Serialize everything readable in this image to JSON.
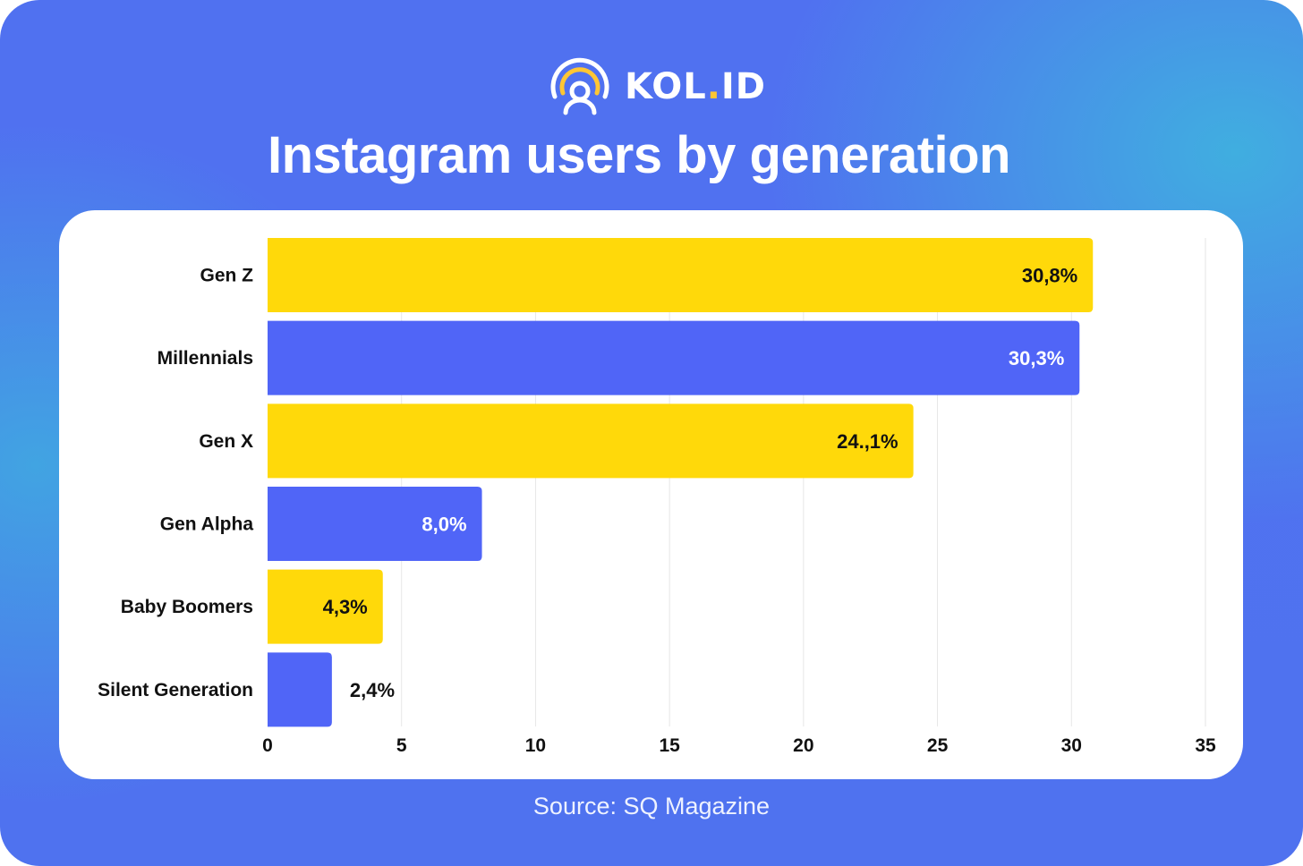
{
  "brand": {
    "name_main": "KOL",
    "name_dot": ".",
    "name_end": "ID",
    "logo_icon": "broadcast-person-icon",
    "accent": "#ffc634"
  },
  "title": "Instagram users by generation",
  "source": "Source: SQ Magazine",
  "colors": {
    "yellow": "#ffd90a",
    "blue": "#5065f7",
    "grid": "#e6e6e6",
    "text": "#111111"
  },
  "chart_data": {
    "type": "bar",
    "orientation": "horizontal",
    "title": "Instagram users by generation",
    "xlabel": "",
    "ylabel": "",
    "xlim": [
      0,
      35
    ],
    "xticks": [
      0,
      5,
      10,
      15,
      20,
      25,
      30,
      35
    ],
    "grid": true,
    "legend": "none",
    "categories": [
      "Gen Z",
      "Millennials",
      "Gen X",
      "Gen Alpha",
      "Baby Boomers",
      "Silent Generation"
    ],
    "values": [
      30.8,
      30.3,
      24.1,
      8.0,
      4.3,
      2.4
    ],
    "labels": [
      "30,8%",
      "30,3%",
      "24.,1%",
      "8,0%",
      "4,3%",
      "2,4%"
    ],
    "bar_colors": [
      "yellow",
      "blue",
      "yellow",
      "blue",
      "yellow",
      "blue"
    ],
    "unit": "%"
  }
}
